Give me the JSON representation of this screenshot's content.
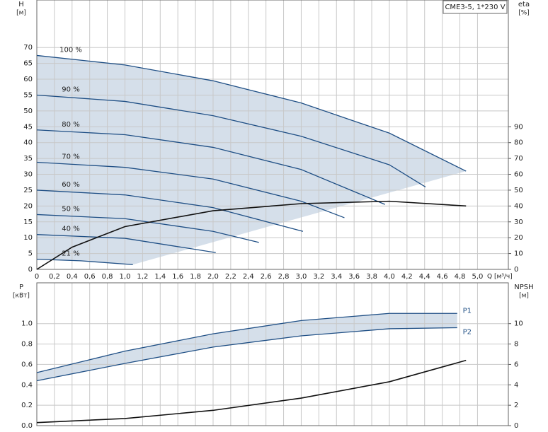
{
  "chart_data": [
    {
      "type": "line",
      "title": "CME3-5, 1*230 V",
      "ylabel": "H",
      "yunit": "[м]",
      "y2label": "eta",
      "y2unit": "[%]",
      "xlabel": "Q [м³/ч]",
      "xlim": [
        0,
        5.35
      ],
      "xticks": [
        {
          "value": 0,
          "label": "0"
        },
        {
          "value": 0.2,
          "label": "0,2"
        },
        {
          "value": 0.4,
          "label": "0,4"
        },
        {
          "value": 0.6,
          "label": "0,6"
        },
        {
          "value": 0.8,
          "label": "0,8"
        },
        {
          "value": 1.0,
          "label": "1,0"
        },
        {
          "value": 1.2,
          "label": "1,2"
        },
        {
          "value": 1.4,
          "label": "1,4"
        },
        {
          "value": 1.6,
          "label": "1,6"
        },
        {
          "value": 1.8,
          "label": "1,8"
        },
        {
          "value": 2.0,
          "label": "2,0"
        },
        {
          "value": 2.2,
          "label": "2,2"
        },
        {
          "value": 2.4,
          "label": "2,4"
        },
        {
          "value": 2.6,
          "label": "2,6"
        },
        {
          "value": 2.8,
          "label": "2,8"
        },
        {
          "value": 3.0,
          "label": "3,0"
        },
        {
          "value": 3.2,
          "label": "3,2"
        },
        {
          "value": 3.4,
          "label": "3,4"
        },
        {
          "value": 3.6,
          "label": "3,6"
        },
        {
          "value": 3.8,
          "label": "3,8"
        },
        {
          "value": 4.0,
          "label": "4,0"
        },
        {
          "value": 4.2,
          "label": "4,2"
        },
        {
          "value": 4.4,
          "label": "4,4"
        },
        {
          "value": 4.6,
          "label": "4,6"
        },
        {
          "value": 4.8,
          "label": "4,8"
        },
        {
          "value": 5.0,
          "label": "5,0"
        }
      ],
      "ylim": [
        0,
        85
      ],
      "yticks": [
        0,
        5,
        10,
        15,
        20,
        25,
        30,
        35,
        40,
        45,
        50,
        55,
        60,
        65,
        70
      ],
      "y2lim": [
        0,
        170
      ],
      "y2ticks": [
        0,
        10,
        20,
        30,
        40,
        50,
        60,
        70,
        80,
        90
      ],
      "grid": true,
      "series": [
        {
          "name": "100 %",
          "color": "#1f4f85",
          "x": [
            0,
            1,
            2,
            3,
            4,
            4.87
          ],
          "values": [
            67.5,
            64.5,
            59.5,
            52.5,
            43,
            31
          ]
        },
        {
          "name": "90 %",
          "color": "#1f4f85",
          "x": [
            0,
            1,
            2,
            3,
            4,
            4.41
          ],
          "values": [
            55,
            53,
            48.5,
            42,
            33,
            26
          ]
        },
        {
          "name": "80 %",
          "color": "#1f4f85",
          "x": [
            0,
            1,
            2,
            3,
            3.95
          ],
          "values": [
            44,
            42.5,
            38.5,
            31.5,
            20.5
          ]
        },
        {
          "name": "70 %",
          "color": "#1f4f85",
          "x": [
            0,
            1,
            2,
            3,
            3.49
          ],
          "values": [
            33.8,
            32.2,
            28.5,
            21.5,
            16.3
          ]
        },
        {
          "name": "60 %",
          "color": "#1f4f85",
          "x": [
            0,
            1,
            2,
            3.02
          ],
          "values": [
            25,
            23.5,
            19.5,
            12
          ]
        },
        {
          "name": "50 %",
          "color": "#1f4f85",
          "x": [
            0,
            1,
            2,
            2.52
          ],
          "values": [
            17.3,
            16,
            12,
            8.5
          ]
        },
        {
          "name": "40 %",
          "color": "#1f4f85",
          "x": [
            0,
            1,
            2.03
          ],
          "values": [
            11,
            9.8,
            5.3
          ]
        },
        {
          "name": "21 %",
          "color": "#1f4f85",
          "x": [
            0,
            0.5,
            1.09
          ],
          "values": [
            3.2,
            2.7,
            1.5
          ]
        },
        {
          "color": "#111111",
          "axis": "y2",
          "x": [
            0,
            0.4,
            1,
            2,
            3,
            4,
            4.87
          ],
          "values": [
            0,
            14,
            27,
            37,
            41.5,
            43,
            40
          ]
        }
      ]
    },
    {
      "type": "line",
      "ylabel": "P",
      "yunit": "[кВт]",
      "y2label": "NPSH",
      "y2unit": "[м]",
      "xlim": [
        0,
        5.35
      ],
      "xticks": [
        0,
        0.2,
        0.4,
        0.6,
        0.8,
        1.0,
        1.2,
        1.4,
        1.6,
        1.8,
        2.0,
        2.2,
        2.4,
        2.6,
        2.8,
        3.0,
        3.2,
        3.4,
        3.6,
        3.8,
        4.0,
        4.2,
        4.4,
        4.6,
        4.8,
        5.0
      ],
      "ylim": [
        0,
        1.4
      ],
      "yticks": [
        {
          "value": 0,
          "label": "0.0"
        },
        {
          "value": 0.2,
          "label": "0.2"
        },
        {
          "value": 0.4,
          "label": "0.4"
        },
        {
          "value": 0.6,
          "label": "0.6"
        },
        {
          "value": 0.8,
          "label": "0.8"
        },
        {
          "value": 1.0,
          "label": "1.0"
        }
      ],
      "y2lim": [
        0,
        14
      ],
      "y2ticks": [
        0,
        2,
        4,
        6,
        8,
        10
      ],
      "grid": true,
      "series": [
        {
          "name": "P1",
          "color": "#1f4f85",
          "x": [
            0,
            1,
            2,
            3,
            4,
            4.77
          ],
          "values": [
            0.52,
            0.73,
            0.9,
            1.03,
            1.1,
            1.1
          ]
        },
        {
          "name": "P2",
          "color": "#1f4f85",
          "x": [
            0,
            1,
            2,
            3,
            4,
            4.77
          ],
          "values": [
            0.44,
            0.61,
            0.77,
            0.88,
            0.95,
            0.96
          ]
        },
        {
          "color": "#111111",
          "axis": "y2",
          "x": [
            0,
            1,
            2,
            3,
            4,
            4.87
          ],
          "values": [
            0.3,
            0.7,
            1.5,
            2.7,
            4.3,
            6.4
          ]
        }
      ]
    }
  ]
}
